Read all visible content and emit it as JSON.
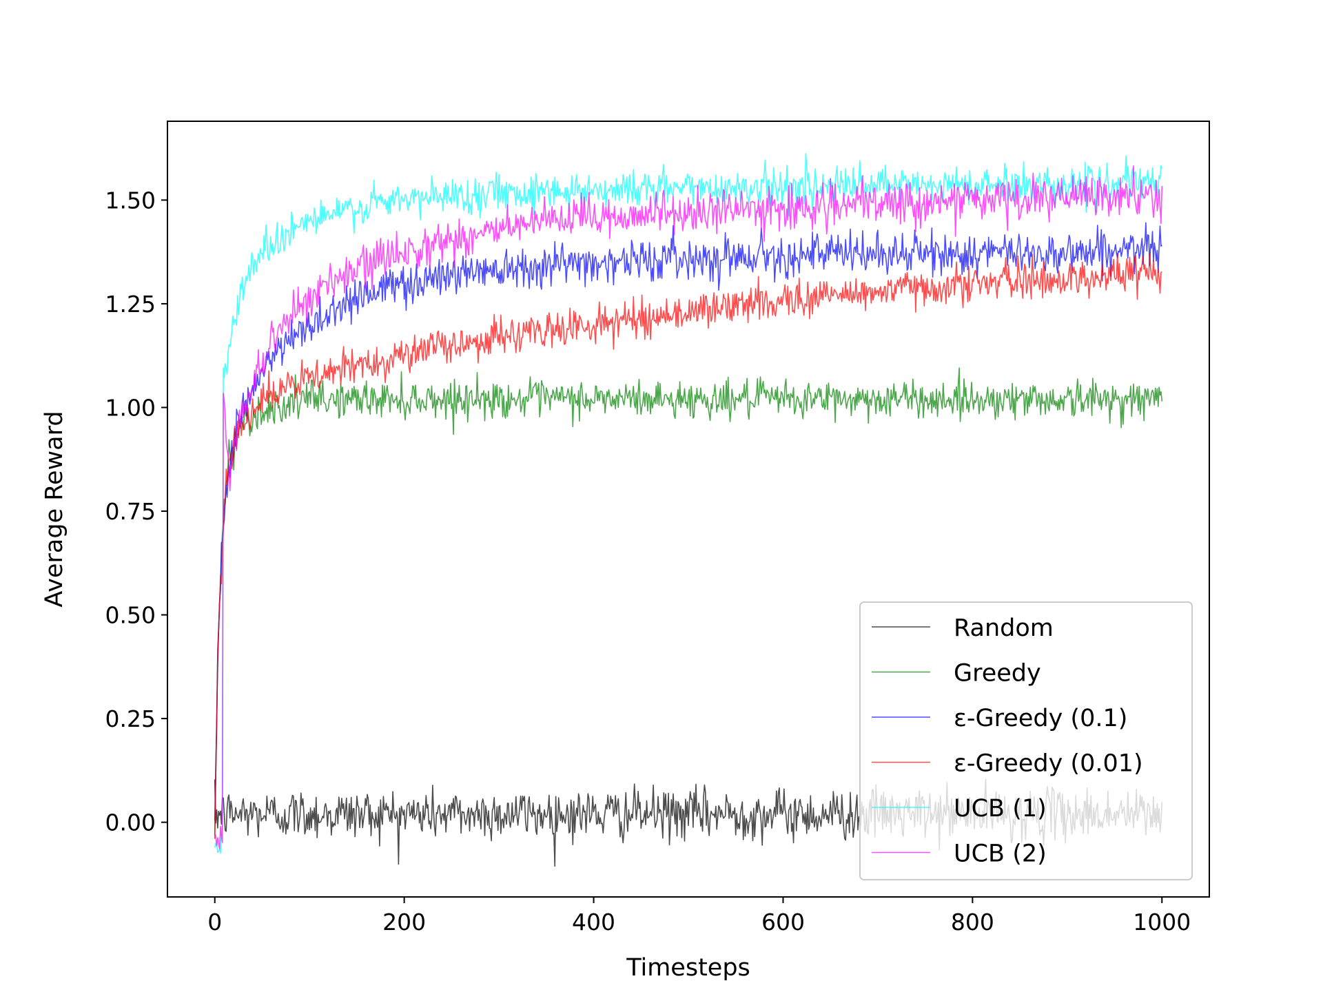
{
  "chart_data": {
    "type": "line",
    "xlabel": "Timesteps",
    "ylabel": "Average Reward",
    "xlim": [
      -50,
      1050
    ],
    "ylim": [
      -0.18,
      1.69
    ],
    "x_ticks": [
      0,
      200,
      400,
      600,
      800,
      1000
    ],
    "x_tick_labels": [
      "0",
      "200",
      "400",
      "600",
      "800",
      "1000"
    ],
    "y_ticks": [
      0.0,
      0.25,
      0.5,
      0.75,
      1.0,
      1.25,
      1.5
    ],
    "y_tick_labels": [
      "0.00",
      "0.25",
      "0.50",
      "0.75",
      "1.00",
      "1.25",
      "1.50"
    ],
    "grid": false,
    "legend": {
      "placement": "lower-right"
    },
    "x_range": [
      0,
      1000
    ],
    "series": [
      {
        "name": "Random",
        "color": "#000000",
        "opacity": 0.7,
        "noise": 0.03,
        "anchors": [
          [
            0,
            0.02
          ],
          [
            1000,
            0.02
          ]
        ]
      },
      {
        "name": "Greedy",
        "color": "#008000",
        "opacity": 0.7,
        "noise": 0.022,
        "anchors": [
          [
            0,
            -0.03
          ],
          [
            3,
            0.4
          ],
          [
            8,
            0.7
          ],
          [
            15,
            0.88
          ],
          [
            30,
            0.97
          ],
          [
            60,
            1.0
          ],
          [
            100,
            1.02
          ],
          [
            1000,
            1.02
          ]
        ]
      },
      {
        "name": "ε-Greedy (0.1)",
        "color": "#0000ff",
        "opacity": 0.7,
        "noise": 0.025,
        "anchors": [
          [
            0,
            -0.03
          ],
          [
            3,
            0.4
          ],
          [
            8,
            0.7
          ],
          [
            15,
            0.88
          ],
          [
            30,
            1.0
          ],
          [
            60,
            1.12
          ],
          [
            100,
            1.2
          ],
          [
            150,
            1.27
          ],
          [
            200,
            1.3
          ],
          [
            300,
            1.34
          ],
          [
            400,
            1.35
          ],
          [
            600,
            1.37
          ],
          [
            800,
            1.37
          ],
          [
            1000,
            1.38
          ]
        ]
      },
      {
        "name": "ε-Greedy (0.01)",
        "color": "#ff0000",
        "opacity": 0.7,
        "noise": 0.022,
        "anchors": [
          [
            0,
            -0.03
          ],
          [
            3,
            0.4
          ],
          [
            8,
            0.7
          ],
          [
            15,
            0.88
          ],
          [
            30,
            0.98
          ],
          [
            60,
            1.03
          ],
          [
            100,
            1.07
          ],
          [
            200,
            1.13
          ],
          [
            300,
            1.17
          ],
          [
            400,
            1.2
          ],
          [
            500,
            1.23
          ],
          [
            600,
            1.26
          ],
          [
            700,
            1.28
          ],
          [
            800,
            1.3
          ],
          [
            900,
            1.31
          ],
          [
            1000,
            1.33
          ]
        ]
      },
      {
        "name": "UCB (1)",
        "color": "#00ffff",
        "opacity": 0.7,
        "noise": 0.022,
        "anchors": [
          [
            0,
            -0.04
          ],
          [
            8,
            -0.03
          ],
          [
            9,
            1.07
          ],
          [
            20,
            1.2
          ],
          [
            30,
            1.3
          ],
          [
            50,
            1.38
          ],
          [
            80,
            1.43
          ],
          [
            100,
            1.45
          ],
          [
            150,
            1.48
          ],
          [
            200,
            1.5
          ],
          [
            300,
            1.52
          ],
          [
            500,
            1.53
          ],
          [
            1000,
            1.54
          ]
        ]
      },
      {
        "name": "UCB (2)",
        "color": "#ff00ff",
        "opacity": 0.7,
        "noise": 0.025,
        "anchors": [
          [
            0,
            -0.04
          ],
          [
            8,
            -0.03
          ],
          [
            9,
            1.03
          ],
          [
            15,
            0.85
          ],
          [
            25,
            0.95
          ],
          [
            40,
            1.05
          ],
          [
            60,
            1.17
          ],
          [
            100,
            1.27
          ],
          [
            150,
            1.33
          ],
          [
            200,
            1.38
          ],
          [
            300,
            1.43
          ],
          [
            400,
            1.46
          ],
          [
            600,
            1.48
          ],
          [
            800,
            1.5
          ],
          [
            1000,
            1.51
          ]
        ]
      }
    ]
  }
}
